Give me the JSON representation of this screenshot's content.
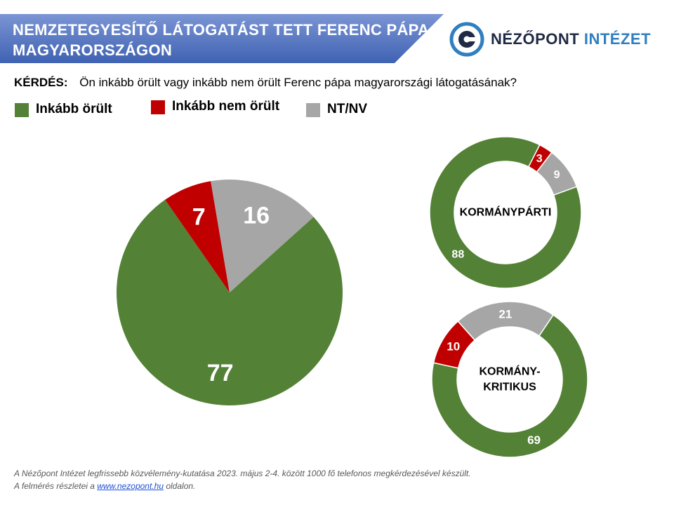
{
  "header": {
    "title_line1": "NEMZETEGYESÍTŐ LÁTOGATÁST TETT FERENC PÁPA",
    "title_line2": "MAGYARORSZÁGON",
    "logo_part1": "NÉZŐPONT",
    "logo_part2": "INTÉZET",
    "banner_color": "#4a6fbd"
  },
  "question": {
    "label": "KÉRDÉS:",
    "text": "Ön inkább örült vagy inkább nem örült Ferenc pápa magyarországi látogatásának?"
  },
  "legend": [
    {
      "label": "Inkább örült",
      "color": "#538135"
    },
    {
      "label": "Inkább nem örült",
      "color": "#c00000"
    },
    {
      "label": "NT/NV",
      "color": "#a6a6a6"
    }
  ],
  "chart_data": [
    {
      "type": "pie",
      "categories": [
        "Inkább örült",
        "Inkább nem örült",
        "NT/NV"
      ],
      "values": [
        77,
        7,
        16
      ],
      "colors": [
        "#538135",
        "#c00000",
        "#a6a6a6"
      ]
    },
    {
      "type": "donut",
      "center_label": [
        "KORMÁNYPÁRTI"
      ],
      "categories": [
        "Inkább örült",
        "Inkább nem örült",
        "NT/NV"
      ],
      "values": [
        88,
        3,
        9
      ],
      "colors": [
        "#538135",
        "#c00000",
        "#a6a6a6"
      ]
    },
    {
      "type": "donut",
      "center_label": [
        "KORMÁNY-",
        "KRITIKUS"
      ],
      "categories": [
        "Inkább örült",
        "Inkább nem örült",
        "NT/NV"
      ],
      "values": [
        69,
        10,
        21
      ],
      "colors": [
        "#538135",
        "#c00000",
        "#a6a6a6"
      ]
    }
  ],
  "footer": {
    "line1": "A Nézőpont Intézet legfrissebb közvélemény-kutatása  2023. május 2-4. között 1000 fő telefonos megkérdezésével készült.",
    "line2_prefix": "A felmérés részletei a ",
    "link": "www.nezopont.hu",
    "line2_suffix": "  oldalon."
  }
}
